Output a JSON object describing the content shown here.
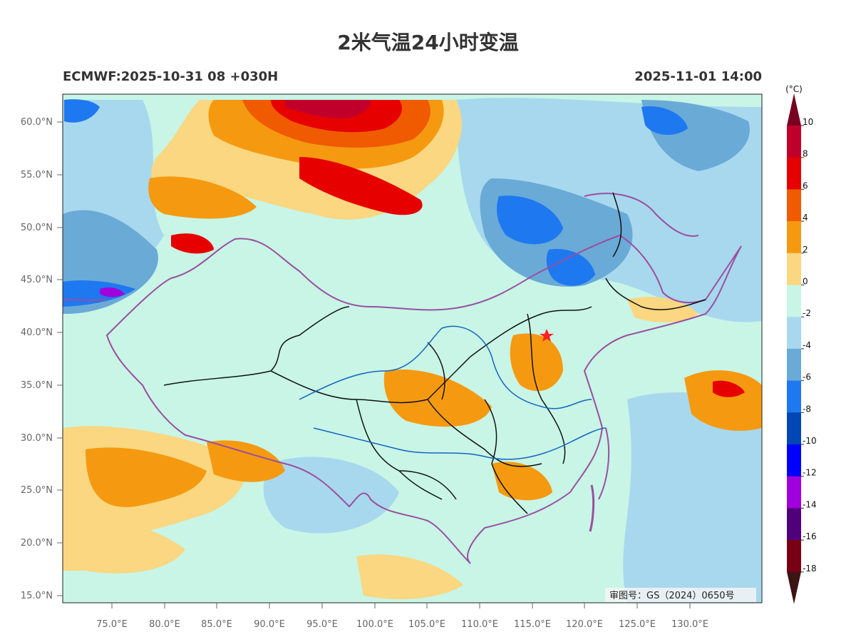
{
  "header": {
    "title": "2米气温24小时变温",
    "model_run": "ECMWF:2025-10-31 08 +030H",
    "valid_time": "2025-11-01 14:00"
  },
  "map": {
    "lat_ticks": [
      "60.0°N",
      "55.0°N",
      "50.0°N",
      "45.0°N",
      "40.0°N",
      "35.0°N",
      "30.0°N",
      "25.0°N",
      "20.0°N",
      "15.0°N"
    ],
    "lon_ticks": [
      "75.0°E",
      "80.0°E",
      "85.0°E",
      "90.0°E",
      "95.0°E",
      "100.0°E",
      "105.0°E",
      "110.0°E",
      "115.0°E",
      "120.0°E",
      "125.0°E",
      "130.0°E"
    ],
    "approval_number": "审图号：GS（2024）0650号",
    "marker": "capital-star"
  },
  "colorbar": {
    "unit": "(°C)",
    "labels": [
      "10",
      "8",
      "6",
      "4",
      "2",
      "0",
      "-2",
      "-4",
      "-6",
      "-8",
      "-10",
      "-12",
      "-14",
      "-16",
      "-18"
    ],
    "colors": [
      "#c0002a",
      "#e60000",
      "#f05a00",
      "#f59a10",
      "#fad780",
      "#c8f5e6",
      "#a8d8ee",
      "#6aaad6",
      "#1e78f0",
      "#0046b4",
      "#0000ff",
      "#a000dc",
      "#500078",
      "#780014"
    ],
    "top_arrow_color": "#780020",
    "bottom_arrow_color": "#3c1414"
  }
}
